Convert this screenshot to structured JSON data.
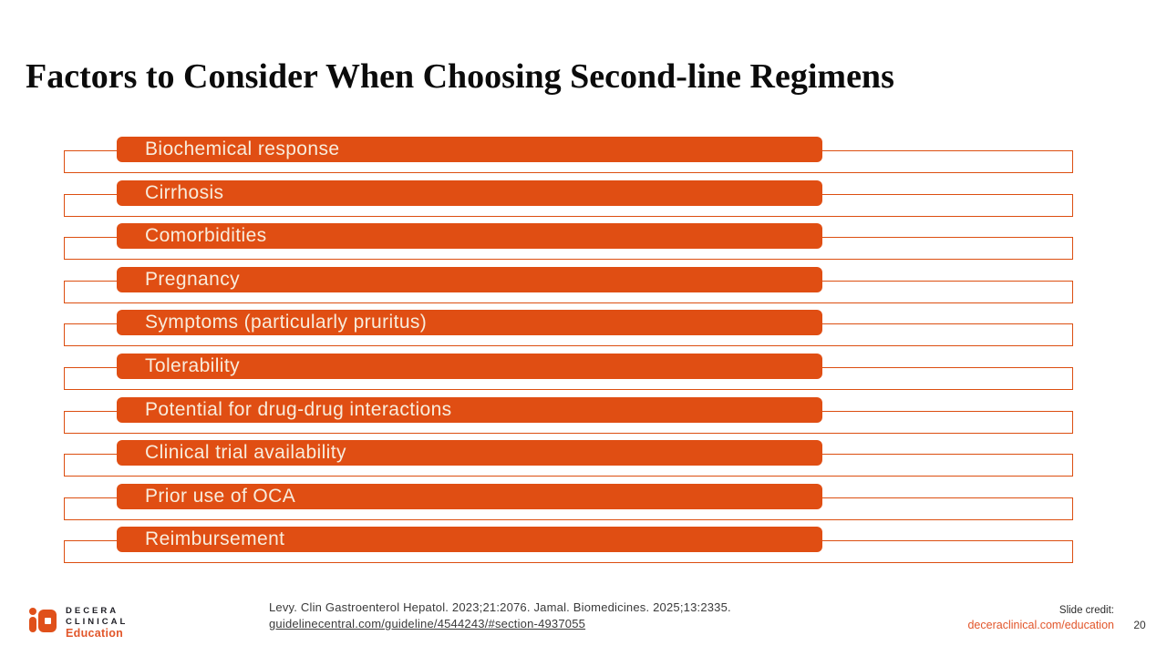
{
  "slide": {
    "title": "Factors to Consider When Choosing Second-line Regimens",
    "factors": [
      "Biochemical response",
      "Cirrhosis",
      "Comorbidities",
      "Pregnancy",
      "Symptoms (particularly pruritus)",
      "Tolerability",
      "Potential for drug-drug interactions",
      "Clinical trial availability",
      "Prior use of OCA",
      "Reimbursement"
    ],
    "page_number": "20"
  },
  "footer": {
    "citation_line1": "Levy. Clin Gastroenterol Hepatol. 2023;21:2076. Jamal. Biomedicines. 2025;13:2335.",
    "citation_link": "guidelinecentral.com/guideline/4544243/#section-4937055",
    "slide_credit_label": "Slide credit:",
    "slide_credit_link": "deceraclinical.com/education"
  },
  "logo": {
    "line1": "DECERA",
    "line2": "CLINICAL",
    "line3": "Education"
  },
  "colors": {
    "bar_fill": "#E04E13",
    "bar_outline": "#DC4E10",
    "bar_text": "#F8ECDC",
    "link_orange": "#E2562B",
    "title_text": "#0B0B0B",
    "citation_text": "#3A3A3A"
  }
}
